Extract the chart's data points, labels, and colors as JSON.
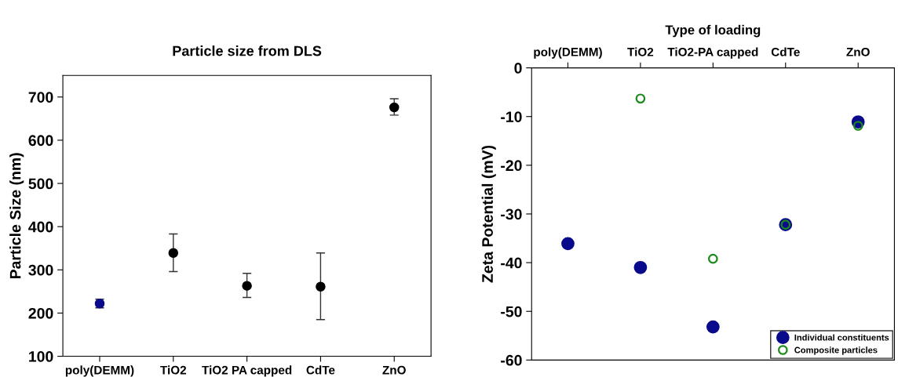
{
  "chart_data": [
    {
      "type": "scatter",
      "title": "Particle size from DLS",
      "ylabel": "Particle Size (nm)",
      "categories": [
        "poly(DEMM)",
        "TiO2",
        "TiO2 PA capped",
        "CdTe",
        "ZnO"
      ],
      "values": [
        222,
        339,
        263,
        261,
        676
      ],
      "errors": [
        [
          212,
          232
        ],
        [
          296,
          383
        ],
        [
          236,
          292
        ],
        [
          185,
          339
        ],
        [
          658,
          696
        ]
      ],
      "colors": [
        "#0a0a8c",
        "#000000",
        "#000000",
        "#000000",
        "#000000"
      ],
      "ylim": [
        100,
        750
      ],
      "yticks": [
        100,
        200,
        300,
        400,
        500,
        600,
        700
      ],
      "marker": "circle",
      "grid": false,
      "legend": false
    },
    {
      "type": "scatter",
      "xlabel": "Type of loading",
      "ylabel": "Zeta Potential (mV)",
      "categories": [
        "poly(DEMM)",
        "TiO2",
        "TiO2-PA capped",
        "CdTe",
        "ZnO"
      ],
      "series": [
        {
          "name": "Individual constituents",
          "color": "#0a0a8c",
          "marker": "circle",
          "values": [
            -36.1,
            -41.0,
            -53.2,
            -32.2,
            -11.1
          ]
        },
        {
          "name": "Composite particles",
          "color": "#1a8a1a",
          "marker": "open_circle",
          "values": [
            null,
            -6.3,
            -39.2,
            -32.2,
            -11.9
          ]
        }
      ],
      "ylim": [
        -60,
        0
      ],
      "yticks": [
        -60,
        -50,
        -40,
        -30,
        -20,
        -10,
        0
      ],
      "grid": false,
      "legend": "bottom right"
    }
  ]
}
